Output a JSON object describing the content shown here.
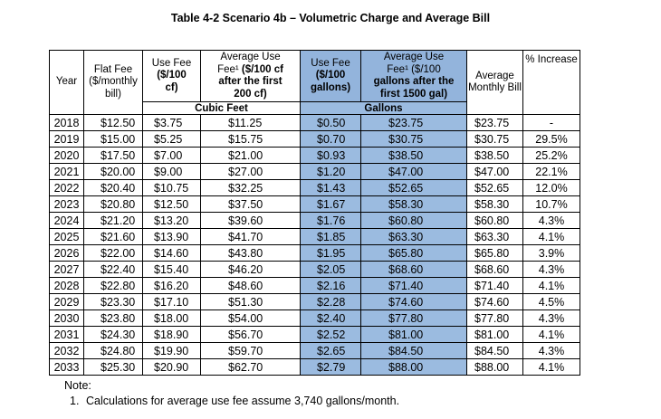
{
  "title": "Table 4-2 Scenario 4b – Volumetric Charge and Average Bill",
  "headers": {
    "year": "Year",
    "flat_fee": "Flat Fee ($/monthly bill)",
    "use_fee_cf_line1": "Use Fee",
    "use_fee_cf_line2": "($/100",
    "use_fee_cf_line3": "cf)",
    "avg_use_cf_line1": "Average Use",
    "avg_use_cf_line2": "Fee¹ ",
    "avg_use_cf_line2b": "($/100 cf",
    "avg_use_cf_line3": "after the first",
    "avg_use_cf_line4": "200 cf)",
    "use_fee_gal_line1": "Use Fee",
    "use_fee_gal_line2": "($/100",
    "use_fee_gal_line3": "gallons)",
    "avg_use_gal_line1": "Average Use",
    "avg_use_gal_line2": "Fee¹ ($/100",
    "avg_use_gal_line3": "gallons after the",
    "avg_use_gal_line4": "first 1500 gal)",
    "avg_monthly_bill": "Average Monthly Bill",
    "pct_increase": "% Increase",
    "cubic_feet": "Cubic Feet",
    "gallons": "Gallons"
  },
  "rows": [
    {
      "year": "2018",
      "flat": "$12.50",
      "fee_cf": "$3.75",
      "avg_cf": "$11.25",
      "fee_gal": "$0.50",
      "avg_gal": "$23.75",
      "bill": "$23.75",
      "pct": "-"
    },
    {
      "year": "2019",
      "flat": "$15.00",
      "fee_cf": "$5.25",
      "avg_cf": "$15.75",
      "fee_gal": "$0.70",
      "avg_gal": "$30.75",
      "bill": "$30.75",
      "pct": "29.5%"
    },
    {
      "year": "2020",
      "flat": "$17.50",
      "fee_cf": "$7.00",
      "avg_cf": "$21.00",
      "fee_gal": "$0.93",
      "avg_gal": "$38.50",
      "bill": "$38.50",
      "pct": "25.2%"
    },
    {
      "year": "2021",
      "flat": "$20.00",
      "fee_cf": "$9.00",
      "avg_cf": "$27.00",
      "fee_gal": "$1.20",
      "avg_gal": "$47.00",
      "bill": "$47.00",
      "pct": "22.1%"
    },
    {
      "year": "2022",
      "flat": "$20.40",
      "fee_cf": "$10.75",
      "avg_cf": "$32.25",
      "fee_gal": "$1.43",
      "avg_gal": "$52.65",
      "bill": "$52.65",
      "pct": "12.0%"
    },
    {
      "year": "2023",
      "flat": "$20.80",
      "fee_cf": "$12.50",
      "avg_cf": "$37.50",
      "fee_gal": "$1.67",
      "avg_gal": "$58.30",
      "bill": "$58.30",
      "pct": "10.7%"
    },
    {
      "year": "2024",
      "flat": "$21.20",
      "fee_cf": "$13.20",
      "avg_cf": "$39.60",
      "fee_gal": "$1.76",
      "avg_gal": "$60.80",
      "bill": "$60.80",
      "pct": "4.3%"
    },
    {
      "year": "2025",
      "flat": "$21.60",
      "fee_cf": "$13.90",
      "avg_cf": "$41.70",
      "fee_gal": "$1.85",
      "avg_gal": "$63.30",
      "bill": "$63.30",
      "pct": "4.1%"
    },
    {
      "year": "2026",
      "flat": "$22.00",
      "fee_cf": "$14.60",
      "avg_cf": "$43.80",
      "fee_gal": "$1.95",
      "avg_gal": "$65.80",
      "bill": "$65.80",
      "pct": "3.9%"
    },
    {
      "year": "2027",
      "flat": "$22.40",
      "fee_cf": "$15.40",
      "avg_cf": "$46.20",
      "fee_gal": "$2.05",
      "avg_gal": "$68.60",
      "bill": "$68.60",
      "pct": "4.3%"
    },
    {
      "year": "2028",
      "flat": "$22.80",
      "fee_cf": "$16.20",
      "avg_cf": "$48.60",
      "fee_gal": "$2.16",
      "avg_gal": "$71.40",
      "bill": "$71.40",
      "pct": "4.1%"
    },
    {
      "year": "2029",
      "flat": "$23.30",
      "fee_cf": "$17.10",
      "avg_cf": "$51.30",
      "fee_gal": "$2.28",
      "avg_gal": "$74.60",
      "bill": "$74.60",
      "pct": "4.5%"
    },
    {
      "year": "2030",
      "flat": "$23.80",
      "fee_cf": "$18.00",
      "avg_cf": "$54.00",
      "fee_gal": "$2.40",
      "avg_gal": "$77.80",
      "bill": "$77.80",
      "pct": "4.3%"
    },
    {
      "year": "2031",
      "flat": "$24.30",
      "fee_cf": "$18.90",
      "avg_cf": "$56.70",
      "fee_gal": "$2.52",
      "avg_gal": "$81.00",
      "bill": "$81.00",
      "pct": "4.1%"
    },
    {
      "year": "2032",
      "flat": "$24.80",
      "fee_cf": "$19.90",
      "avg_cf": "$59.70",
      "fee_gal": "$2.65",
      "avg_gal": "$84.50",
      "bill": "$84.50",
      "pct": "4.3%"
    },
    {
      "year": "2033",
      "flat": "$25.30",
      "fee_cf": "$20.90",
      "avg_cf": "$62.70",
      "fee_gal": "$2.79",
      "avg_gal": "$88.00",
      "bill": "$88.00",
      "pct": "4.1%"
    }
  ],
  "note_label": "Note:",
  "notes": [
    {
      "num": "1.",
      "text": "Calculations for average use fee assume 3,740 gallons/month."
    }
  ],
  "colors": {
    "gallons_fill": "#9bbbe0"
  }
}
